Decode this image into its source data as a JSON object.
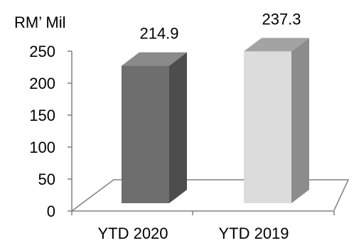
{
  "chart_data": {
    "type": "bar",
    "style": "3d",
    "ylabel": "RM’ Mil",
    "categories": [
      "YTD 2020",
      "YTD 2019"
    ],
    "values": [
      214.9,
      237.3
    ],
    "data_labels": [
      "214.9",
      "237.3"
    ],
    "ylim": [
      0,
      250
    ],
    "yticks": [
      "0",
      "50",
      "100",
      "150",
      "200",
      "250"
    ],
    "grid": false,
    "legend": "none",
    "colors": {
      "bars": [
        {
          "front": "#6e6e6e",
          "top": "#8a8a8a",
          "side": "#4d4d4d"
        },
        {
          "front": "#dcdcdc",
          "top": "#a3a3a3",
          "side": "#8c8c8c"
        }
      ],
      "axis": "#808080"
    }
  }
}
